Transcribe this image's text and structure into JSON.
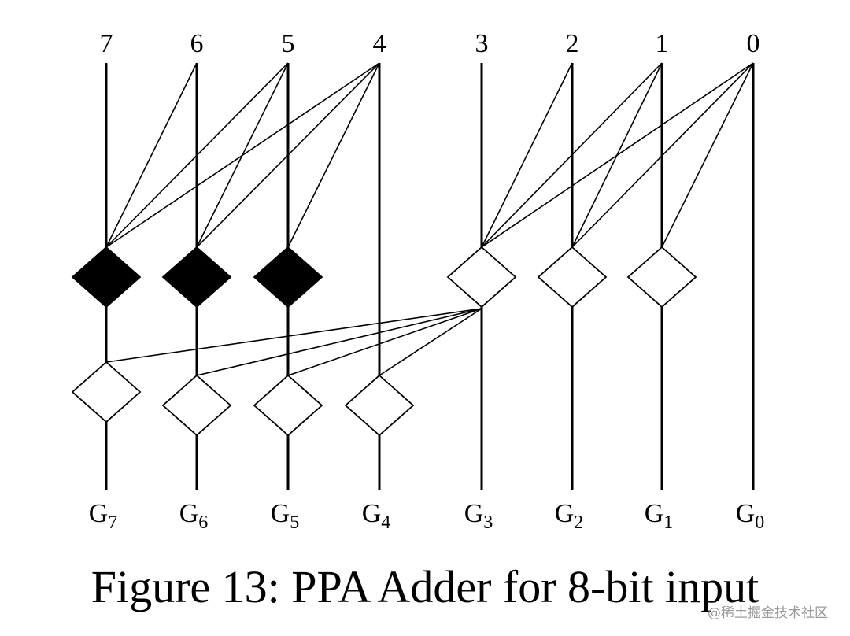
{
  "diagram": {
    "top_labels": [
      "7",
      "6",
      "5",
      "4",
      "3",
      "2",
      "1",
      "0"
    ],
    "bottom_labels": [
      {
        "base": "G",
        "sub": "7"
      },
      {
        "base": "G",
        "sub": "6"
      },
      {
        "base": "G",
        "sub": "5"
      },
      {
        "base": "G",
        "sub": "4"
      },
      {
        "base": "G",
        "sub": "3"
      },
      {
        "base": "G",
        "sub": "2"
      },
      {
        "base": "G",
        "sub": "1"
      },
      {
        "base": "G",
        "sub": "0"
      }
    ],
    "level1_nodes": [
      {
        "bit": "7",
        "fill": "black",
        "inputs": [
          "7",
          "6",
          "5",
          "4"
        ]
      },
      {
        "bit": "6",
        "fill": "black",
        "inputs": [
          "6",
          "5",
          "4"
        ]
      },
      {
        "bit": "5",
        "fill": "black",
        "inputs": [
          "5",
          "4"
        ]
      },
      {
        "bit": "3",
        "fill": "white",
        "inputs": [
          "3",
          "2",
          "1",
          "0"
        ]
      },
      {
        "bit": "2",
        "fill": "white",
        "inputs": [
          "2",
          "1",
          "0"
        ]
      },
      {
        "bit": "1",
        "fill": "white",
        "inputs": [
          "1",
          "0"
        ]
      }
    ],
    "level2_nodes": [
      {
        "bit": "7",
        "fill": "white",
        "from": "3"
      },
      {
        "bit": "6",
        "fill": "white",
        "from": "3"
      },
      {
        "bit": "5",
        "fill": "white",
        "from": "3"
      },
      {
        "bit": "4",
        "fill": "white",
        "from": "3"
      }
    ],
    "colors": {
      "stroke": "#000000",
      "black_node": "#000000",
      "white_node": "#ffffff"
    }
  },
  "caption": "Figure 13: PPA Adder for 8-bit input",
  "watermark": "@稀土掘金技术社区"
}
